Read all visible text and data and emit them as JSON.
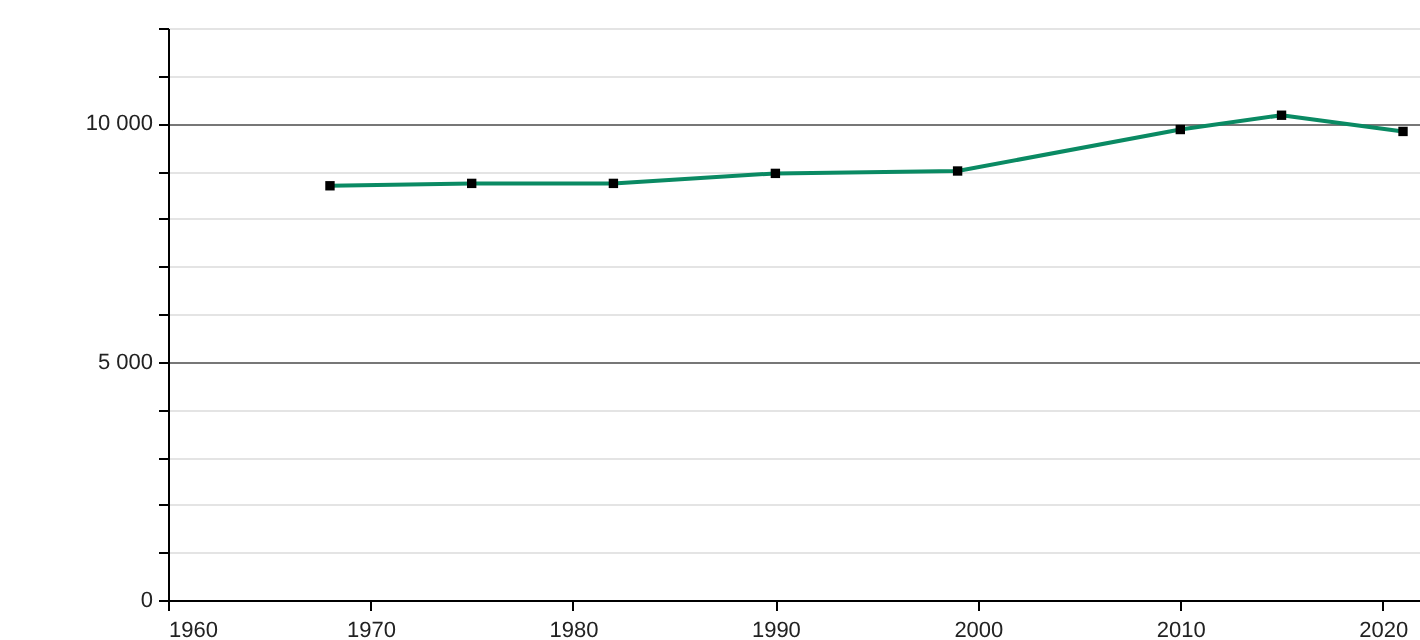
{
  "chart_data": {
    "type": "line",
    "x": [
      1968,
      1975,
      1982,
      1990,
      1999,
      2010,
      2015,
      2021
    ],
    "series": [
      {
        "color": "#0a8a63",
        "values": [
          8690,
          8740,
          8740,
          8950,
          9000,
          9870,
          10170,
          9830
        ]
      }
    ],
    "xlim": [
      1960,
      2025
    ],
    "xticks": [
      1960,
      1970,
      1980,
      1990,
      2000,
      2010,
      2020
    ],
    "ylim": [
      0,
      12000
    ],
    "yticks": [
      0,
      {
        "value": 1000,
        "label": null
      },
      {
        "value": 2000,
        "label": null
      },
      {
        "value": 3000,
        "label": null
      },
      {
        "value": 4000,
        "label": null
      },
      {
        "value": 5000,
        "label": "5 000"
      },
      {
        "value": 6000,
        "label": null
      },
      {
        "value": 7000,
        "label": null
      },
      {
        "value": 8000,
        "label": null
      },
      {
        "value": 9000,
        "label": null
      },
      {
        "value": 10000,
        "label": "10 000"
      },
      {
        "value": 11000,
        "label": null
      },
      {
        "value": 12000,
        "label": null
      }
    ],
    "grid": "y",
    "marker": "square",
    "line_style": "solid"
  }
}
